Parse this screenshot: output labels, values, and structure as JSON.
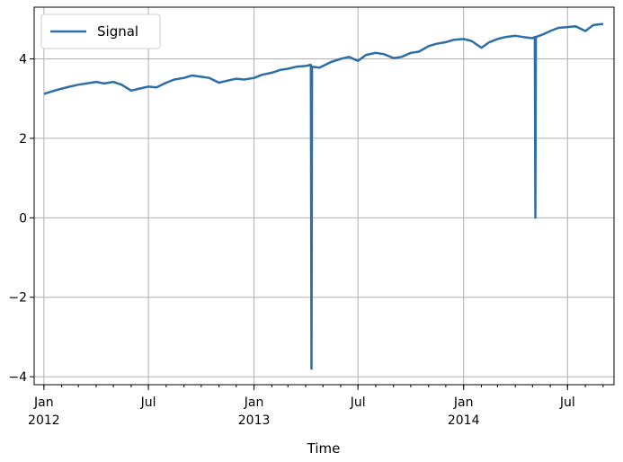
{
  "chart_data": {
    "type": "line",
    "title": "",
    "xlabel": "Time",
    "ylabel": "",
    "x_range": [
      "2011-12-15",
      "2014-09-20"
    ],
    "ylim": [
      -4.2,
      5.3
    ],
    "grid": true,
    "legend": {
      "placement": "top-left",
      "entries": [
        "Signal"
      ]
    },
    "color": "#2c6ea8",
    "y_ticks": [
      -4,
      -2,
      0,
      2,
      4
    ],
    "y_tick_labels": [
      "−4",
      "−2",
      "0",
      "2",
      "4"
    ],
    "x_major_ticks": [
      {
        "date": "2012-01-01",
        "label": "Jan",
        "year": "2012"
      },
      {
        "date": "2012-07-01",
        "label": "Jul",
        "year": ""
      },
      {
        "date": "2013-01-01",
        "label": "Jan",
        "year": "2013"
      },
      {
        "date": "2013-07-01",
        "label": "Jul",
        "year": ""
      },
      {
        "date": "2014-01-01",
        "label": "Jan",
        "year": "2014"
      },
      {
        "date": "2014-07-01",
        "label": "Jul",
        "year": ""
      }
    ],
    "series": [
      {
        "name": "Signal",
        "points": [
          [
            "2012-01-01",
            3.12
          ],
          [
            "2012-01-15",
            3.18
          ],
          [
            "2012-02-01",
            3.25
          ],
          [
            "2012-02-15",
            3.3
          ],
          [
            "2012-03-01",
            3.35
          ],
          [
            "2012-03-15",
            3.38
          ],
          [
            "2012-04-01",
            3.42
          ],
          [
            "2012-04-15",
            3.38
          ],
          [
            "2012-05-01",
            3.42
          ],
          [
            "2012-05-15",
            3.35
          ],
          [
            "2012-06-01",
            3.2
          ],
          [
            "2012-06-15",
            3.25
          ],
          [
            "2012-07-01",
            3.3
          ],
          [
            "2012-07-15",
            3.28
          ],
          [
            "2012-08-01",
            3.4
          ],
          [
            "2012-08-15",
            3.48
          ],
          [
            "2012-09-01",
            3.52
          ],
          [
            "2012-09-15",
            3.58
          ],
          [
            "2012-10-01",
            3.55
          ],
          [
            "2012-10-15",
            3.52
          ],
          [
            "2012-11-01",
            3.4
          ],
          [
            "2012-11-15",
            3.45
          ],
          [
            "2012-12-01",
            3.5
          ],
          [
            "2012-12-15",
            3.48
          ],
          [
            "2013-01-01",
            3.52
          ],
          [
            "2013-01-15",
            3.6
          ],
          [
            "2013-02-01",
            3.65
          ],
          [
            "2013-02-15",
            3.72
          ],
          [
            "2013-03-01",
            3.75
          ],
          [
            "2013-03-15",
            3.8
          ],
          [
            "2013-04-01",
            3.82
          ],
          [
            "2013-04-10",
            3.85
          ],
          [
            "2013-04-11",
            -3.8
          ],
          [
            "2013-04-12",
            3.8
          ],
          [
            "2013-04-25",
            3.78
          ],
          [
            "2013-05-15",
            3.92
          ],
          [
            "2013-06-01",
            4.0
          ],
          [
            "2013-06-15",
            4.05
          ],
          [
            "2013-07-01",
            3.95
          ],
          [
            "2013-07-15",
            4.1
          ],
          [
            "2013-08-01",
            4.15
          ],
          [
            "2013-08-15",
            4.12
          ],
          [
            "2013-09-01",
            4.02
          ],
          [
            "2013-09-15",
            4.05
          ],
          [
            "2013-10-01",
            4.15
          ],
          [
            "2013-10-15",
            4.18
          ],
          [
            "2013-11-01",
            4.32
          ],
          [
            "2013-11-15",
            4.38
          ],
          [
            "2013-12-01",
            4.42
          ],
          [
            "2013-12-15",
            4.48
          ],
          [
            "2014-01-01",
            4.5
          ],
          [
            "2014-01-15",
            4.45
          ],
          [
            "2014-02-01",
            4.28
          ],
          [
            "2014-02-15",
            4.42
          ],
          [
            "2014-03-01",
            4.5
          ],
          [
            "2014-03-15",
            4.55
          ],
          [
            "2014-04-01",
            4.58
          ],
          [
            "2014-04-15",
            4.55
          ],
          [
            "2014-05-01",
            4.52
          ],
          [
            "2014-05-05",
            4.55
          ],
          [
            "2014-05-06",
            0.0
          ],
          [
            "2014-05-07",
            4.55
          ],
          [
            "2014-05-20",
            4.62
          ],
          [
            "2014-06-01",
            4.7
          ],
          [
            "2014-06-15",
            4.78
          ],
          [
            "2014-07-01",
            4.8
          ],
          [
            "2014-07-15",
            4.82
          ],
          [
            "2014-08-01",
            4.7
          ],
          [
            "2014-08-15",
            4.85
          ],
          [
            "2014-09-01",
            4.88
          ]
        ]
      }
    ]
  }
}
